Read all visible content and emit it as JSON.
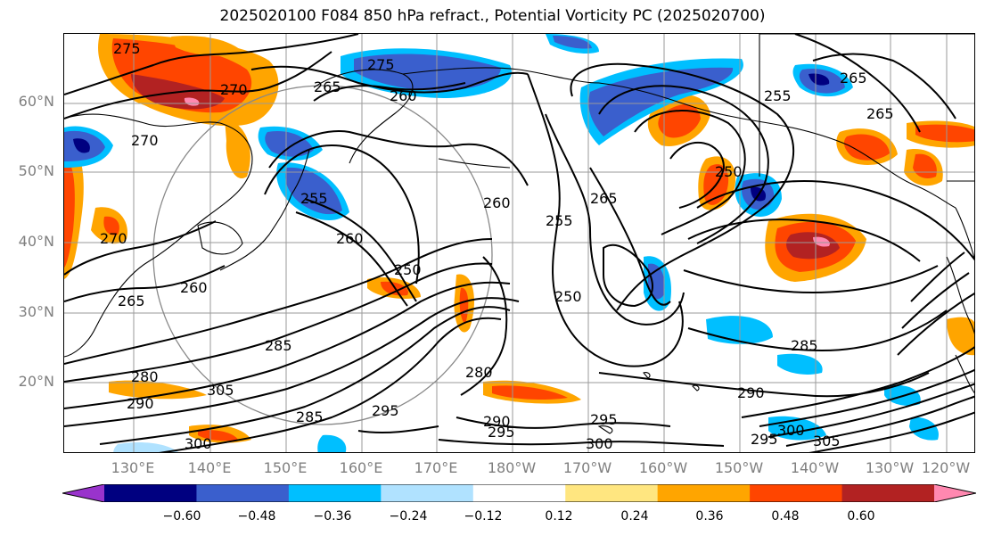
{
  "title": "2025020100 F084 850 hPa refract., Potential Vorticity PC (2025020700)",
  "map": {
    "lat_labels": [
      "60°N",
      "50°N",
      "40°N",
      "30°N",
      "20°N"
    ],
    "lon_labels": [
      "130°E",
      "140°E",
      "150°E",
      "160°E",
      "170°E",
      "180°W",
      "170°W",
      "160°W",
      "150°W",
      "140°W",
      "130°W",
      "120°W"
    ],
    "label_color": "#7f7f7f",
    "gridlines": true,
    "contour_labels": [
      "275",
      "270",
      "265",
      "260",
      "255",
      "250",
      "280",
      "285",
      "290",
      "295",
      "300",
      "305"
    ]
  },
  "colorbar": {
    "tick_labels": [
      "−0.60",
      "−0.48",
      "−0.36",
      "−0.24",
      "−0.12",
      "0.12",
      "0.24",
      "0.36",
      "0.48",
      "0.60"
    ],
    "colors": [
      "#9933cc",
      "#000080",
      "#3a5fcd",
      "#00bfff",
      "#b0e2ff",
      "#ffffff",
      "#ffe680",
      "#ffa500",
      "#ff4500",
      "#b22222",
      "#ff88b0"
    ],
    "extend": "both"
  }
}
